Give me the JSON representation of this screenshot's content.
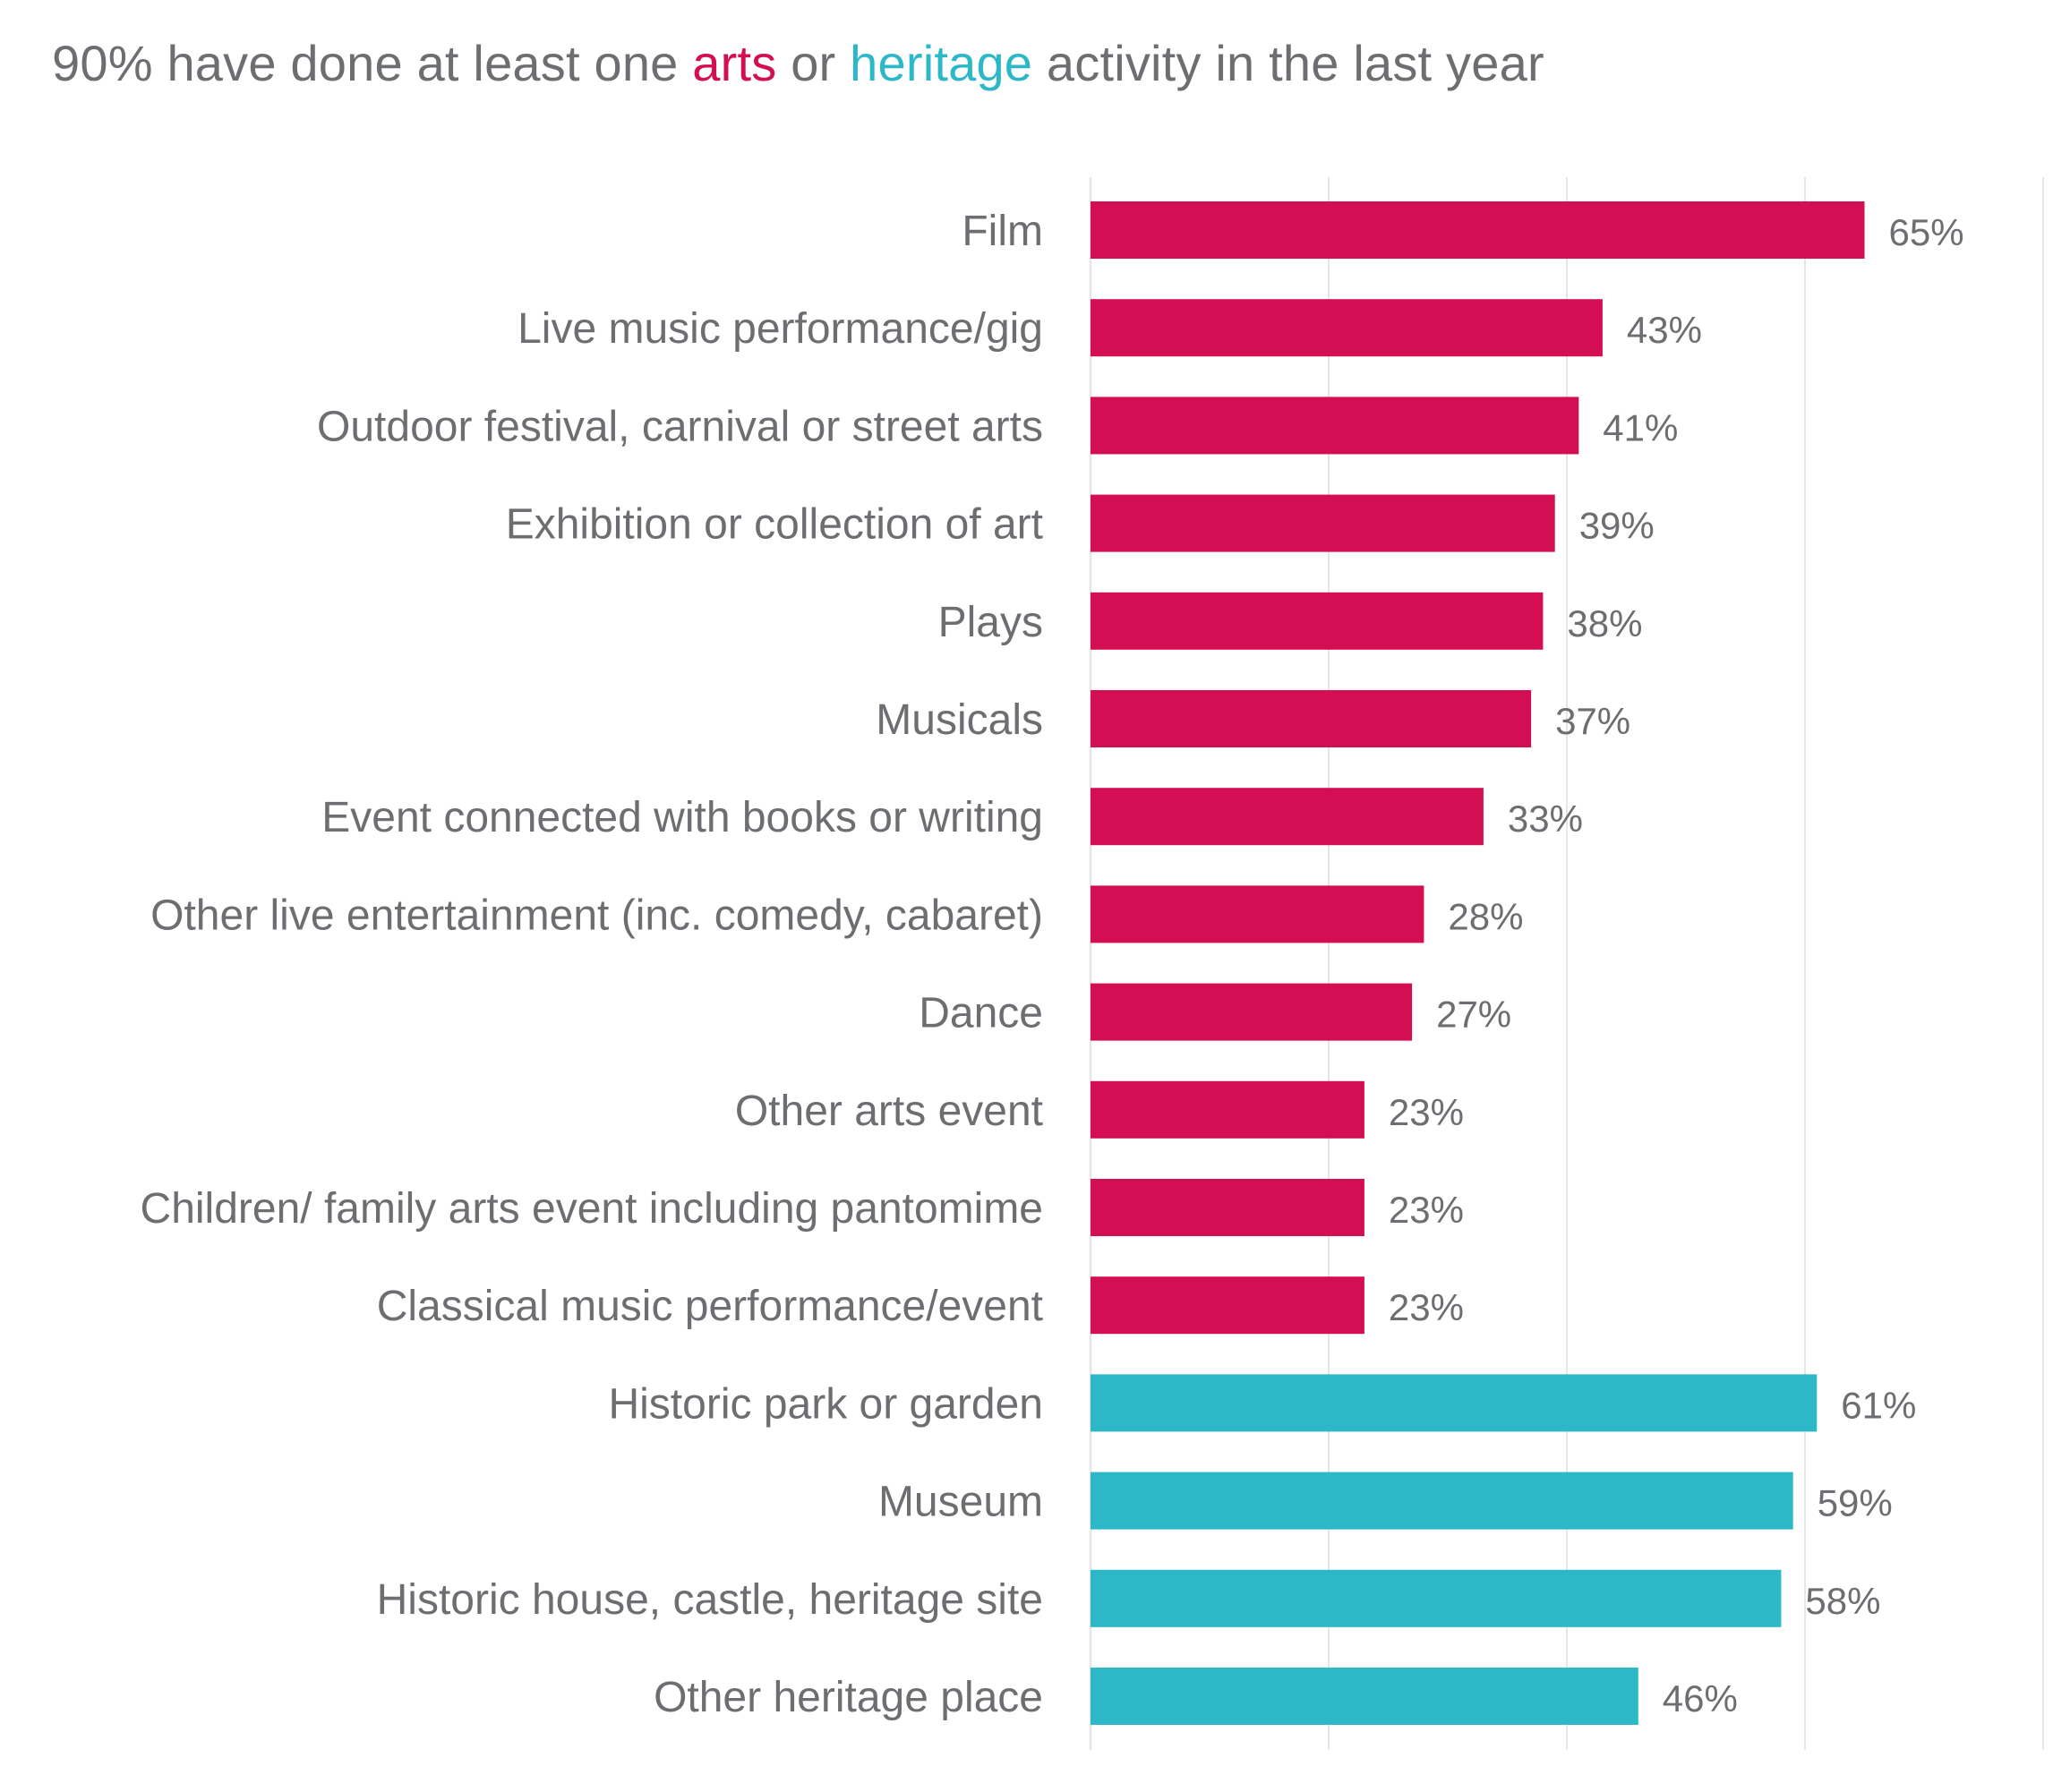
{
  "title": {
    "part1": "90% have done at least one ",
    "arts_word": "arts",
    "part2": " or ",
    "heritage_word": "heritage",
    "part3": " activity in the last year"
  },
  "colors": {
    "arts": "#d40e53",
    "heritage": "#2cb8c6",
    "text": "#6d6e71",
    "gridline": "#e6e6e6"
  },
  "chart_data": {
    "type": "bar",
    "orientation": "horizontal",
    "title": "90% have done at least one arts or heritage activity in the last year",
    "xlabel": "",
    "ylabel": "",
    "xlim": [
      0,
      80
    ],
    "grid": true,
    "categories": [
      "Film",
      "Live music performance/gig",
      "Outdoor festival, carnival or street arts",
      "Exhibition or collection of art",
      "Plays",
      "Musicals",
      "Event connected with books or writing",
      "Other live entertainment (inc. comedy, cabaret)",
      "Dance",
      "Other arts event",
      "Children/ family arts event including pantomime",
      "Classical music performance/event",
      "Historic park or garden",
      "Museum",
      "Historic house, castle, heritage site",
      "Other heritage place"
    ],
    "values": [
      65,
      43,
      41,
      39,
      38,
      37,
      33,
      28,
      27,
      23,
      23,
      23,
      61,
      59,
      58,
      46
    ],
    "value_labels": [
      "65%",
      "43%",
      "41%",
      "39%",
      "38%",
      "37%",
      "33%",
      "28%",
      "27%",
      "23%",
      "23%",
      "23%",
      "61%",
      "59%",
      "58%",
      "46%"
    ],
    "groups": [
      "arts",
      "arts",
      "arts",
      "arts",
      "arts",
      "arts",
      "arts",
      "arts",
      "arts",
      "arts",
      "arts",
      "arts",
      "heritage",
      "heritage",
      "heritage",
      "heritage"
    ]
  }
}
